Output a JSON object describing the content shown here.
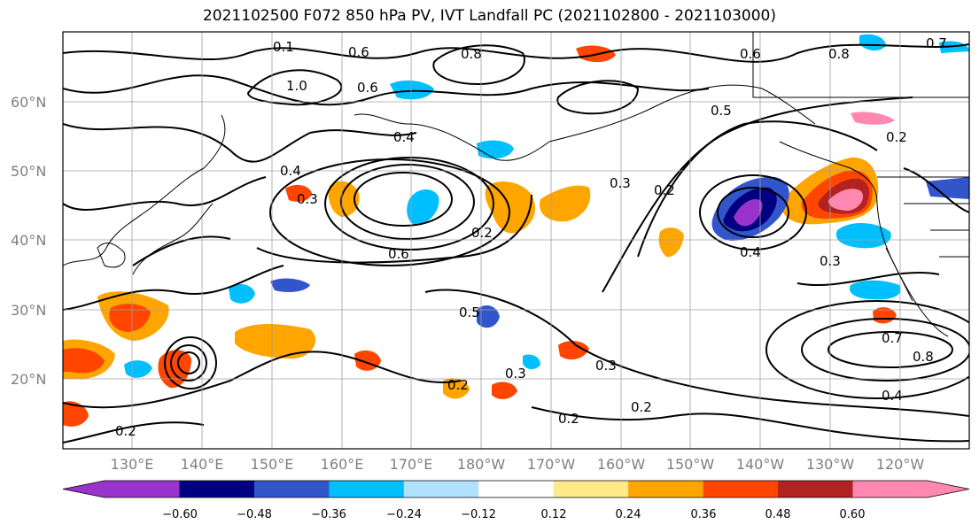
{
  "title": "2021102500 F072 850 hPa PV, IVT Landfall PC (2021102800 - 2021103000)",
  "lat_labels": [
    "60°N",
    "50°N",
    "40°N",
    "30°N",
    "20°N"
  ],
  "lon_labels": [
    "130°E",
    "140°E",
    "150°E",
    "160°E",
    "170°E",
    "180°W",
    "170°W",
    "160°W",
    "150°W",
    "140°W",
    "130°W",
    "120°W"
  ],
  "contour_labels": [
    "0.1",
    "0.6",
    "1.0",
    "0.8",
    "0.4",
    "0.6",
    "0.5",
    "0.2",
    "0.7",
    "0.8",
    "0.3",
    "0.2",
    "0.6",
    "0.3",
    "0.4",
    "0.3",
    "0.3",
    "0.2",
    "0.2",
    "0.3",
    "0.2",
    "0.7",
    "0.8",
    "0.4",
    "0.2",
    "0.4",
    "0.6",
    "0.2",
    "0.5"
  ],
  "colorbar": {
    "colors": [
      "#9933cc",
      "#000080",
      "#3355cc",
      "#00bfff",
      "#b0e2ff",
      "#ffffff",
      "#ffe98a",
      "#ffa500",
      "#ff4500",
      "#b22222",
      "#ff88b0"
    ],
    "tick_labels": [
      "−0.60",
      "−0.48",
      "−0.36",
      "−0.24",
      "−0.12",
      "0.12",
      "0.24",
      "0.36",
      "0.48",
      "0.60"
    ]
  }
}
